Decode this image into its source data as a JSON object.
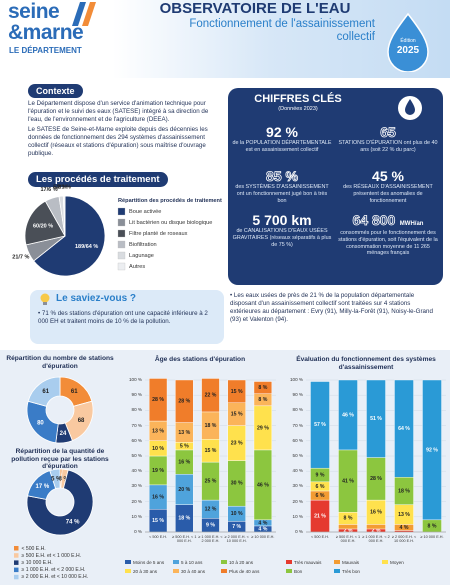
{
  "header": {
    "brand": "seine",
    "brand2": "&marne",
    "brand3": "LE DÉPARTEMENT",
    "title": "OBSERVATOIRE DE L'EAU",
    "subtitle": "Fonctionnement de l'assainissement collectif",
    "edition": "Édition",
    "year": "2025"
  },
  "context": {
    "title": "Contexte",
    "paragraphs": [
      "Le Département dispose d'un service d'animation technique pour l'épuration et le suivi des eaux (SATESE) intégré à sa direction de l'eau, de l'environnement et de l'agriculture (DEEA).",
      "Le SATESE de Seine-et-Marne exploite depuis des décennies les données de fonctionnement des 294 systèmes d'assainissement collectif (réseaux et stations d'épuration) sous maîtrise d'ouvrage publique."
    ]
  },
  "key_figures": {
    "title": "CHIFFRES CLÉS",
    "subtitle": "(Données 2023)",
    "items": [
      {
        "figure": "92 %",
        "text": "de la POPULATION DÉPARTEMENTALE est en assainissement collectif"
      },
      {
        "figure": "65",
        "text": "STATIONS D'ÉPURATION ont plus de 40 ans (soit 22 % du parc)"
      },
      {
        "figure": "85 %",
        "text": "des SYSTÈMES D'ASSAINISSEMENT ont un fonctionnement jugé bon à très bon"
      },
      {
        "figure": "45 %",
        "text": "des RÉSEAUX D'ASSAINISSEMENT présentent des anomalies de fonctionnement"
      },
      {
        "figure": "5 700 km",
        "text": "de CANALISATIONS D'EAUX USÉES GRAVITAIRES (réseaux séparatifs à plus de 75 %)"
      },
      {
        "figure": "64 800",
        "unit": "MWH/an",
        "text": "consommés pour le fonctionnement des stations d'épuration, soit l'équivalent de la consommation moyenne de 11 265 ménages français"
      }
    ]
  },
  "did_you_know": {
    "title": "Le saviez-vous ?",
    "items": [
      "71 % des stations d'épuration ont une capacité inférieure à 2 000 EH et traitent moins de 10 % de la pollution.",
      "Les eaux usées de près de 21 % de la population départementale disposant d'un assainissement collectif sont traitées sur 4 stations extérieures au département : Evry (91), Milly-la-Forêt (91), Noisy-le-Grand (93) et Valenton (94)."
    ]
  },
  "chart_data": [
    {
      "type": "pie",
      "title": "Les procédés de traitement",
      "legend_title": "Répartition des procédés de traitement",
      "categories": [
        "Boue activée",
        "Lit bactérien ou disque biologique",
        "Filtre planté de roseaux",
        "Biofiltration",
        "Lagunage",
        "Autres"
      ],
      "values": [
        189,
        21,
        60,
        17,
        5,
        2
      ],
      "value_labels": [
        "189/64 %",
        "21/7 %",
        "60/20 %",
        "17/6 %",
        "5/2 %",
        "2/1 %"
      ],
      "colors": [
        "#1f3b73",
        "#8a8f98",
        "#4a4f57",
        "#b9bdc4",
        "#d9dce0",
        "#eceef1"
      ]
    },
    {
      "type": "donut",
      "title": "Répartition du nombre de stations d'épuration",
      "categories": [
        "< 500 E.H.",
        "≥ 500 E.H. et < 1 000 E.H.",
        "≥ 10 000 E.H.",
        "≥ 1 000 E.H. et < 2 000 E.H.",
        "≥ 2 000 E.H. et < 10 000 E.H."
      ],
      "values": [
        61,
        68,
        24,
        80,
        61
      ],
      "colors": [
        "#f28c38",
        "#f9c9a0",
        "#1f3b73",
        "#3a7cc7",
        "#a9cdee"
      ]
    },
    {
      "type": "donut",
      "title": "Répartition de la quantité de pollution reçue par les stations d'épuration",
      "values": [
        1,
        3,
        74,
        17,
        5
      ],
      "value_labels": [
        "1 %",
        "3 %",
        "74 %",
        "17 %",
        "5 %"
      ],
      "colors": [
        "#f28c38",
        "#f9c9a0",
        "#1f3b73",
        "#3a7cc7",
        "#a9cdee"
      ]
    },
    {
      "type": "stacked_bar",
      "title": "Âge des stations d'épuration",
      "categories": [
        "< 500 E.H.",
        "≥ 500 E.H. < 1 000 E.H.",
        "≥ 1 000 E.H. < 2 000 E.H.",
        "≥ 2 000 E.H. < 10 000 E.H.",
        "≥ 10 000 E.H."
      ],
      "ylim": [
        0,
        100
      ],
      "yticks": [
        {
          "value": 0,
          "label": "0 %"
        },
        {
          "value": 10,
          "label": "10 %"
        },
        {
          "value": 20,
          "label": "20 %"
        },
        {
          "value": 30,
          "label": "30 %"
        },
        {
          "value": 40,
          "label": "40 %"
        },
        {
          "value": 50,
          "label": "50 %"
        },
        {
          "value": 60,
          "label": "60 %"
        },
        {
          "value": 70,
          "label": "70 %"
        },
        {
          "value": 80,
          "label": "80 %"
        },
        {
          "value": 90,
          "label": "90 %"
        },
        {
          "value": 100,
          "label": "100 %"
        }
      ],
      "series": [
        {
          "name": "Moins de 5 ans",
          "color": "#2a5caa",
          "values": [
            15,
            18,
            9,
            7,
            4
          ],
          "value_labels": [
            "15 %",
            "18 %",
            "9 %",
            "7 %",
            "4 %"
          ]
        },
        {
          "name": "5 à 10 ans",
          "color": "#4fa3dc",
          "values": [
            16,
            20,
            12,
            10,
            4
          ],
          "value_labels": [
            "16 %",
            "20 %",
            "12 %",
            "10 %",
            "4 %"
          ]
        },
        {
          "name": "10 à 20 ans",
          "color": "#8cc63f",
          "values": [
            19,
            16,
            25,
            30,
            46
          ],
          "value_labels": [
            "19 %",
            "16 %",
            "25 %",
            "30 %",
            "46 %"
          ]
        },
        {
          "name": "20 à 30 ans",
          "color": "#ffe14d",
          "values": [
            10,
            5,
            15,
            23,
            29
          ],
          "value_labels": [
            "10 %",
            "5 %",
            "15 %",
            "23 %",
            "29 %"
          ]
        },
        {
          "name": "30 à 40 ans",
          "color": "#fbb45a",
          "values": [
            13,
            13,
            18,
            15,
            8
          ],
          "value_labels": [
            "13 %",
            "13 %",
            "18 %",
            "15 %",
            "8 %"
          ]
        },
        {
          "name": "Plus de 40 ans",
          "color": "#f07d2a",
          "values": [
            28,
            28,
            22,
            15,
            8
          ],
          "value_labels": [
            "28 %",
            "28 %",
            "22 %",
            "15 %",
            "8 %"
          ]
        }
      ]
    },
    {
      "type": "stacked_bar",
      "title": "Évaluation du fonctionnement des systèmes d'assainissement",
      "categories": [
        "< 500 E.H.",
        "≥ 500 E.H. < 1 000 E.H.",
        "≥ 1 000 E.H. < 2 000 E.H.",
        "≥ 2 000 E.H. < 10 000 E.H.",
        "≥ 10 000 E.H."
      ],
      "ylim": [
        0,
        100
      ],
      "yticks": [
        {
          "value": 0,
          "label": "0 %"
        },
        {
          "value": 10,
          "label": "10 %"
        },
        {
          "value": 20,
          "label": "20 %"
        },
        {
          "value": 30,
          "label": "30 %"
        },
        {
          "value": 40,
          "label": "40 %"
        },
        {
          "value": 50,
          "label": "50 %"
        },
        {
          "value": 60,
          "label": "60 %"
        },
        {
          "value": 70,
          "label": "70 %"
        },
        {
          "value": 80,
          "label": "80 %"
        },
        {
          "value": 90,
          "label": "90 %"
        },
        {
          "value": 100,
          "label": "100 %"
        }
      ],
      "series": [
        {
          "name": "Très mauvais",
          "color": "#e53a2f",
          "values": [
            21,
            2,
            2,
            1,
            0
          ],
          "value_labels": [
            "21 %",
            "2 %",
            "2 %",
            null,
            null
          ]
        },
        {
          "name": "Mauvais",
          "color": "#f39c33",
          "values": [
            6,
            3,
            3,
            4,
            0
          ],
          "value_labels": [
            "6 %",
            null,
            null,
            "4 %",
            null
          ]
        },
        {
          "name": "Moyen",
          "color": "#ffe14d",
          "values": [
            6,
            8,
            16,
            13,
            0
          ],
          "value_labels": [
            "6 %",
            "8 %",
            "16 %",
            "13 %",
            null
          ]
        },
        {
          "name": "Bon",
          "color": "#8cc63f",
          "values": [
            9,
            41,
            28,
            18,
            8
          ],
          "value_labels": [
            "9 %",
            "41 %",
            "28 %",
            "18 %",
            "8 %"
          ]
        },
        {
          "name": "Très bon",
          "color": "#2a9ad6",
          "values": [
            57,
            46,
            51,
            64,
            92
          ],
          "value_labels": [
            "57 %",
            "46 %",
            "51 %",
            "64 %",
            "92 %"
          ]
        }
      ]
    }
  ]
}
